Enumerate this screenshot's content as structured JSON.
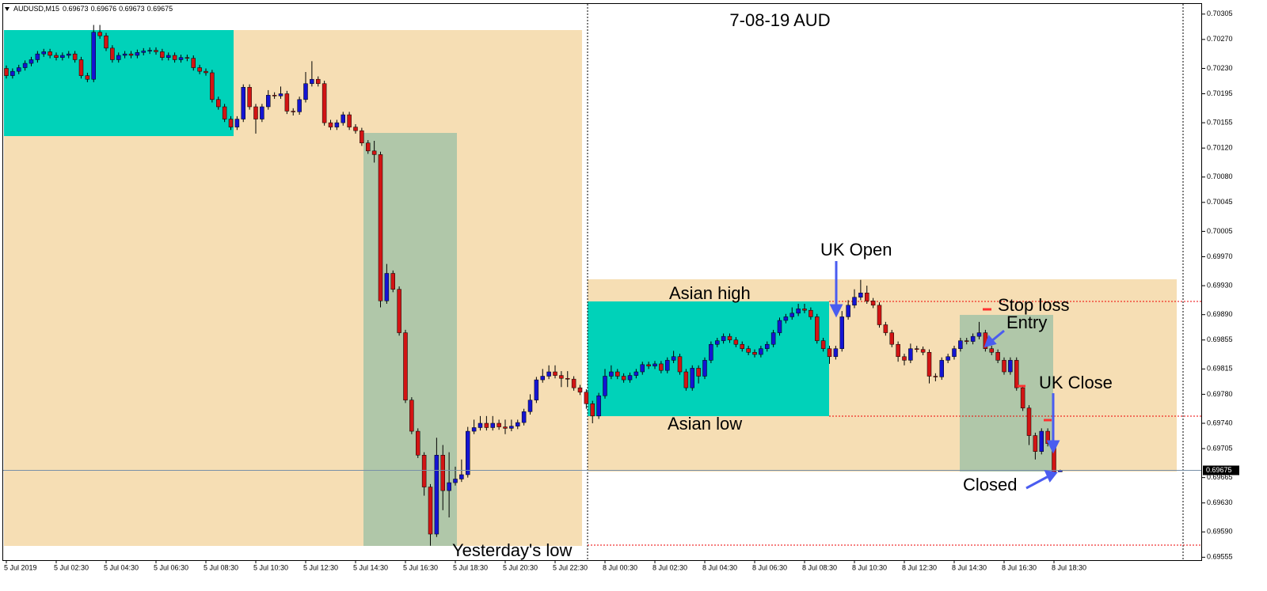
{
  "chart_data": {
    "type": "candlestick",
    "symbol": "AUDUSD,M15",
    "title": "7-08-19  AUD",
    "up_color": "#1414d2",
    "down_color": "#d21414",
    "ylim": [
      0.69551,
      0.70319
    ],
    "yticks": [
      0.70305,
      {
        "value": 0.7027,
        "label": "0.70270"
      },
      {
        "value": 0.7023,
        "label": "0.70230"
      },
      0.70195,
      0.70155,
      {
        "value": 0.7012,
        "label": "0.70120"
      },
      {
        "value": 0.7008,
        "label": "0.70080"
      },
      0.70045,
      0.70005,
      {
        "value": 0.6997,
        "label": "0.69970"
      },
      {
        "value": 0.6993,
        "label": "0.69930"
      },
      {
        "value": 0.6989,
        "label": "0.69890"
      },
      0.69855,
      0.69815,
      {
        "value": 0.6978,
        "label": "0.69780"
      },
      {
        "value": 0.6974,
        "label": "0.69740"
      },
      0.69705,
      0.69665,
      {
        "value": 0.6963,
        "label": "0.69630"
      },
      {
        "value": 0.6959,
        "label": "0.69590"
      },
      0.69555
    ],
    "annotations": [
      "UK Open",
      "Asian high",
      "Stop loss",
      "Entry",
      "UK Close",
      "Asian low",
      "Closed",
      "Yesterday's low"
    ],
    "categories": [
      "5 Jul 2019",
      null,
      null,
      null,
      null,
      null,
      null,
      null,
      "5 Jul 02:30",
      null,
      null,
      null,
      null,
      null,
      null,
      null,
      "5 Jul 04:30",
      null,
      null,
      null,
      null,
      null,
      null,
      null,
      "5 Jul 06:30",
      null,
      null,
      null,
      null,
      null,
      null,
      null,
      "5 Jul 08:30",
      null,
      null,
      null,
      null,
      null,
      null,
      null,
      "5 Jul 10:30",
      null,
      null,
      null,
      null,
      null,
      null,
      null,
      "5 Jul 12:30",
      null,
      null,
      null,
      null,
      null,
      null,
      null,
      "5 Jul 14:30",
      null,
      null,
      null,
      null,
      null,
      null,
      null,
      "5 Jul 16:30",
      null,
      null,
      null,
      null,
      null,
      null,
      null,
      "5 Jul 18:30",
      null,
      null,
      null,
      null,
      null,
      null,
      null,
      "5 Jul 20:30",
      null,
      null,
      null,
      null,
      null,
      null,
      null,
      "5 Jul 22:30",
      null,
      null,
      null,
      null,
      null,
      null,
      null,
      "8 Jul 00:30",
      null,
      null,
      null,
      null,
      null,
      null,
      null,
      "8 Jul 02:30",
      null,
      null,
      null,
      null,
      null,
      null,
      null,
      "8 Jul 04:30",
      null,
      null,
      null,
      null,
      null,
      null,
      null,
      "8 Jul 06:30",
      null,
      null,
      null,
      null,
      null,
      null,
      null,
      "8 Jul 08:30",
      null,
      null,
      null,
      null,
      null,
      null,
      null,
      "8 Jul 10:30",
      null,
      null,
      null,
      null,
      null,
      null,
      null,
      "8 Jul 12:30",
      null,
      null,
      null,
      null,
      null,
      null,
      null,
      "8 Jul 14:30",
      null,
      null,
      null,
      null,
      null,
      null,
      null,
      "8 Jul 16:30",
      null,
      null,
      null,
      null,
      null,
      null,
      null,
      "8 Jul 18:30",
      null
    ],
    "open": [
      0.7023,
      0.7022,
      0.70226,
      0.70231,
      0.70237,
      0.70242,
      0.7025,
      0.70253,
      0.70248,
      0.70245,
      0.70248,
      0.7025,
      0.70242,
      0.7022,
      0.70215,
      0.7028,
      0.70275,
      0.70258,
      0.70242,
      0.70248,
      0.7025,
      0.70248,
      0.70252,
      0.70254,
      0.70255,
      0.70253,
      0.70245,
      0.70248,
      0.70242,
      0.70245,
      0.70244,
      0.70231,
      0.70226,
      0.70224,
      0.70187,
      0.70177,
      0.7016,
      0.70149,
      0.7016,
      0.70204,
      0.70177,
      0.7016,
      0.70177,
      0.70193,
      0.70192,
      0.70195,
      0.70171,
      0.7017,
      0.70187,
      0.70209,
      0.70215,
      0.70209,
      0.70155,
      0.70149,
      0.70155,
      0.70166,
      0.70149,
      0.70144,
      0.70127,
      0.70116,
      0.70111,
      0.69909,
      0.69947,
      0.69925,
      0.69865,
      0.69772,
      0.69729,
      0.69696,
      0.69652,
      0.69587,
      0.69696,
      0.69647,
      0.69658,
      0.69663,
      0.69669,
      0.69729,
      0.69734,
      0.6974,
      0.69734,
      0.6974,
      0.69735,
      0.69733,
      0.69736,
      0.69741,
      0.69756,
      0.69772,
      0.698,
      0.69805,
      0.69811,
      0.69806,
      0.69802,
      0.69801,
      0.69789,
      0.69783,
      0.69767,
      0.6975,
      0.69778,
      0.69805,
      0.69811,
      0.69805,
      0.698,
      0.69806,
      0.69811,
      0.69821,
      0.69819,
      0.69822,
      0.69813,
      0.69827,
      0.69832,
      0.69811,
      0.69789,
      0.69816,
      0.69805,
      0.69827,
      0.69849,
      0.69854,
      0.6986,
      0.69855,
      0.69849,
      0.69843,
      0.69838,
      0.69835,
      0.69843,
      0.69849,
      0.69865,
      0.69882,
      0.69887,
      0.69892,
      0.69898,
      0.69896,
      0.69887,
      0.69854,
      0.69843,
      0.69832,
      0.69843,
      0.69887,
      0.69903,
      0.69914,
      0.6992,
      0.69909,
      0.69903,
      0.69876,
      0.69865,
      0.69849,
      0.69832,
      0.69827,
      0.69843,
      0.69842,
      0.69838,
      0.69805,
      0.69804,
      0.69827,
      0.69832,
      0.69843,
      0.69854,
      0.69853,
      0.6986,
      0.69865,
      0.69843,
      0.69838,
      0.69827,
      0.69811,
      0.69827,
      0.69789,
      0.69761,
      0.69723,
      0.69701,
      0.69729,
      0.69712,
      0.69673
    ],
    "high": [
      0.70234,
      0.7023,
      0.70235,
      0.70241,
      0.70246,
      0.70254,
      0.70257,
      0.70257,
      0.70252,
      0.70252,
      0.70254,
      0.70254,
      0.70246,
      0.70224,
      0.7029,
      0.7029,
      0.70279,
      0.70262,
      0.70252,
      0.70254,
      0.70254,
      0.70256,
      0.70258,
      0.70259,
      0.70259,
      0.70257,
      0.70252,
      0.70252,
      0.70249,
      0.70249,
      0.70248,
      0.70235,
      0.7023,
      0.70228,
      0.70191,
      0.70181,
      0.70164,
      0.70164,
      0.70208,
      0.70208,
      0.70181,
      0.70181,
      0.702,
      0.70197,
      0.70205,
      0.70199,
      0.70175,
      0.70191,
      0.70225,
      0.7024,
      0.70219,
      0.70213,
      0.70159,
      0.70159,
      0.7017,
      0.7017,
      0.70153,
      0.70148,
      0.70131,
      0.7013,
      0.70115,
      0.6996,
      0.69951,
      0.69929,
      0.69869,
      0.69776,
      0.69733,
      0.697,
      0.69656,
      0.6972,
      0.6971,
      0.697,
      0.6968,
      0.6969,
      0.69735,
      0.69745,
      0.6975,
      0.6975,
      0.6975,
      0.69745,
      0.69745,
      0.69745,
      0.69745,
      0.6976,
      0.6978,
      0.69804,
      0.69815,
      0.6982,
      0.6982,
      0.69812,
      0.69812,
      0.69805,
      0.69793,
      0.69787,
      0.69771,
      0.69782,
      0.69815,
      0.6982,
      0.69815,
      0.69809,
      0.6981,
      0.69815,
      0.69825,
      0.69825,
      0.69826,
      0.69826,
      0.69831,
      0.6984,
      0.69836,
      0.69815,
      0.6982,
      0.6982,
      0.69831,
      0.69853,
      0.69858,
      0.69864,
      0.69864,
      0.69859,
      0.69853,
      0.69847,
      0.69842,
      0.69847,
      0.69853,
      0.69869,
      0.69886,
      0.69891,
      0.699,
      0.69905,
      0.69905,
      0.699,
      0.69891,
      0.69858,
      0.69847,
      0.69847,
      0.69895,
      0.6991,
      0.69925,
      0.69938,
      0.6993,
      0.69913,
      0.69907,
      0.6988,
      0.69869,
      0.69853,
      0.69836,
      0.6985,
      0.69847,
      0.69846,
      0.69842,
      0.69809,
      0.69831,
      0.69836,
      0.69847,
      0.69858,
      0.69858,
      0.69864,
      0.6988,
      0.69869,
      0.69847,
      0.69842,
      0.69831,
      0.69831,
      0.69831,
      0.69793,
      0.69765,
      0.69727,
      0.69733,
      0.69733,
      0.69716,
      0.69676
    ],
    "low": [
      0.70216,
      0.70216,
      0.70222,
      0.70227,
      0.70233,
      0.70238,
      0.70246,
      0.70244,
      0.70241,
      0.70241,
      0.70244,
      0.70238,
      0.70216,
      0.70211,
      0.70211,
      0.70271,
      0.70254,
      0.70238,
      0.70238,
      0.70244,
      0.70244,
      0.70244,
      0.70248,
      0.7025,
      0.70249,
      0.70241,
      0.70241,
      0.70238,
      0.70238,
      0.7024,
      0.70227,
      0.70222,
      0.7022,
      0.70183,
      0.70173,
      0.70156,
      0.70145,
      0.70145,
      0.70156,
      0.70173,
      0.7014,
      0.70156,
      0.70173,
      0.70188,
      0.70188,
      0.70167,
      0.70165,
      0.70166,
      0.70183,
      0.70205,
      0.70205,
      0.70151,
      0.70145,
      0.70145,
      0.70151,
      0.70145,
      0.7014,
      0.70123,
      0.70112,
      0.701,
      0.699,
      0.69905,
      0.69921,
      0.69861,
      0.69768,
      0.69725,
      0.69692,
      0.6964,
      0.69571,
      0.69583,
      0.6962,
      0.6961,
      0.69654,
      0.69659,
      0.69665,
      0.69725,
      0.6973,
      0.6973,
      0.6973,
      0.69731,
      0.69725,
      0.69729,
      0.69732,
      0.69737,
      0.69752,
      0.69768,
      0.69796,
      0.69801,
      0.69802,
      0.6979,
      0.6979,
      0.69785,
      0.69779,
      0.6976,
      0.6974,
      0.69746,
      0.69774,
      0.69801,
      0.69801,
      0.69796,
      0.69796,
      0.69802,
      0.69807,
      0.69815,
      0.69815,
      0.69809,
      0.69809,
      0.69823,
      0.69807,
      0.69785,
      0.69785,
      0.69795,
      0.69801,
      0.69823,
      0.69845,
      0.6985,
      0.69851,
      0.69845,
      0.69839,
      0.69834,
      0.69831,
      0.69831,
      0.69839,
      0.69845,
      0.69861,
      0.69878,
      0.69883,
      0.69888,
      0.69892,
      0.69883,
      0.6985,
      0.69839,
      0.69822,
      0.69828,
      0.69839,
      0.69883,
      0.69899,
      0.6991,
      0.69905,
      0.69899,
      0.69872,
      0.69861,
      0.69845,
      0.69825,
      0.6982,
      0.69823,
      0.69838,
      0.69834,
      0.69795,
      0.69798,
      0.698,
      0.69823,
      0.69828,
      0.69839,
      0.69849,
      0.69849,
      0.69856,
      0.69839,
      0.69834,
      0.69823,
      0.69807,
      0.69807,
      0.69785,
      0.69757,
      0.6971,
      0.6969,
      0.69697,
      0.69708,
      0.69669,
      0.69673
    ],
    "close": [
      0.7022,
      0.70226,
      0.70231,
      0.70237,
      0.70242,
      0.7025,
      0.70253,
      0.70248,
      0.70245,
      0.70248,
      0.7025,
      0.70242,
      0.7022,
      0.70215,
      0.7028,
      0.70275,
      0.70258,
      0.70242,
      0.70248,
      0.7025,
      0.70248,
      0.70252,
      0.70254,
      0.70255,
      0.70253,
      0.70245,
      0.70248,
      0.70242,
      0.70245,
      0.70244,
      0.70231,
      0.70226,
      0.70224,
      0.70187,
      0.70177,
      0.7016,
      0.70149,
      0.7016,
      0.70204,
      0.70177,
      0.7016,
      0.70177,
      0.70193,
      0.70192,
      0.70195,
      0.70171,
      0.7017,
      0.70187,
      0.70209,
      0.70215,
      0.70209,
      0.70155,
      0.70149,
      0.70155,
      0.70166,
      0.70149,
      0.70144,
      0.70127,
      0.70116,
      0.70111,
      0.69909,
      0.69947,
      0.69925,
      0.69865,
      0.69772,
      0.69729,
      0.69696,
      0.69652,
      0.69587,
      0.69696,
      0.69647,
      0.69658,
      0.69663,
      0.69669,
      0.69729,
      0.69734,
      0.6974,
      0.69734,
      0.6974,
      0.69735,
      0.69733,
      0.69736,
      0.69741,
      0.69756,
      0.69772,
      0.698,
      0.69805,
      0.69811,
      0.69806,
      0.69802,
      0.69801,
      0.69789,
      0.69783,
      0.69767,
      0.6975,
      0.69778,
      0.69805,
      0.69811,
      0.69805,
      0.698,
      0.69806,
      0.69811,
      0.69821,
      0.69819,
      0.69822,
      0.69813,
      0.69827,
      0.69832,
      0.69811,
      0.69789,
      0.69816,
      0.69805,
      0.69827,
      0.69849,
      0.69854,
      0.6986,
      0.69855,
      0.69849,
      0.69843,
      0.69838,
      0.69835,
      0.69843,
      0.69849,
      0.69865,
      0.69882,
      0.69887,
      0.69892,
      0.69898,
      0.69896,
      0.69887,
      0.69854,
      0.69843,
      0.69832,
      0.69843,
      0.69887,
      0.69903,
      0.69914,
      0.6992,
      0.69909,
      0.69903,
      0.69876,
      0.69865,
      0.69849,
      0.69832,
      0.69827,
      0.69843,
      0.69842,
      0.69838,
      0.69805,
      0.69804,
      0.69827,
      0.69832,
      0.69843,
      0.69854,
      0.69853,
      0.6986,
      0.69865,
      0.69843,
      0.69838,
      0.69827,
      0.69811,
      0.69827,
      0.69789,
      0.69761,
      0.69723,
      0.69701,
      0.69729,
      0.69712,
      0.69673,
      0.69675
    ]
  }
}
